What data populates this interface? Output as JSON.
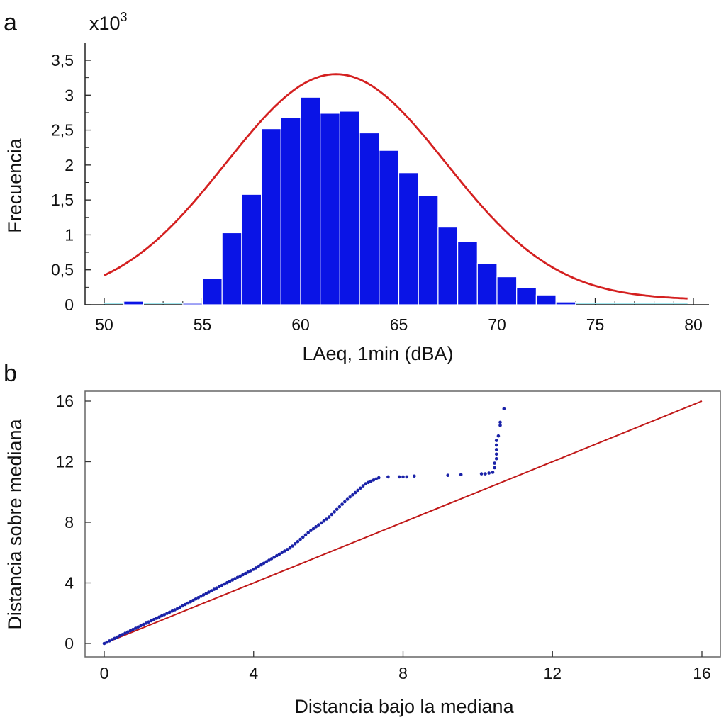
{
  "chart_data": [
    {
      "type": "bar",
      "panel_label": "a",
      "y_multiplier": "x10",
      "y_multiplier_exp": "3",
      "xlabel": "LAeq, 1min (dBA)",
      "ylabel": "Frecuencia",
      "xlim": [
        50,
        80
      ],
      "ylim": [
        0,
        3.5
      ],
      "x_ticks": [
        50,
        55,
        60,
        65,
        70,
        75,
        80
      ],
      "y_ticks": [
        "0",
        "0,5",
        "1",
        "1,5",
        "2",
        "2,5",
        "3",
        "3,5"
      ],
      "bin_width": 1,
      "bins": [
        {
          "x0": 51,
          "value": 0.05
        },
        {
          "x0": 54,
          "value": 0.02
        },
        {
          "x0": 55,
          "value": 0.38
        },
        {
          "x0": 56,
          "value": 1.03
        },
        {
          "x0": 57,
          "value": 1.58
        },
        {
          "x0": 58,
          "value": 2.52
        },
        {
          "x0": 59,
          "value": 2.68
        },
        {
          "x0": 60,
          "value": 2.97
        },
        {
          "x0": 61,
          "value": 2.74
        },
        {
          "x0": 62,
          "value": 2.77
        },
        {
          "x0": 63,
          "value": 2.46
        },
        {
          "x0": 64,
          "value": 2.21
        },
        {
          "x0": 65,
          "value": 1.89
        },
        {
          "x0": 66,
          "value": 1.56
        },
        {
          "x0": 67,
          "value": 1.11
        },
        {
          "x0": 68,
          "value": 0.9
        },
        {
          "x0": 69,
          "value": 0.59
        },
        {
          "x0": 70,
          "value": 0.4
        },
        {
          "x0": 71,
          "value": 0.24
        },
        {
          "x0": 72,
          "value": 0.14
        },
        {
          "x0": 73,
          "value": 0.04
        }
      ],
      "fit_curve": {
        "type": "normal",
        "mean": 61.8,
        "sd": 5.6,
        "peak": 3.3,
        "baseline": 0.07,
        "x_range": [
          50,
          79.7
        ],
        "color": "#d42020"
      },
      "bar_color": "#0a14e6",
      "baseline_color": "#9fe6ee"
    },
    {
      "type": "scatter",
      "panel_label": "b",
      "xlabel": "Distancia bajo la mediana",
      "ylabel": "Distancia sobre mediana",
      "xlim": [
        0,
        16
      ],
      "ylim": [
        0,
        16
      ],
      "x_ticks": [
        0,
        4,
        8,
        12,
        16
      ],
      "y_ticks": [
        0,
        4,
        8,
        12,
        16
      ],
      "reference_line": {
        "from": [
          0,
          0
        ],
        "to": [
          16,
          16
        ],
        "color": "#c01818"
      },
      "point_color": "#1a22a8",
      "curve_knots": [
        [
          0,
          0
        ],
        [
          0.5,
          0.6
        ],
        [
          1.0,
          1.2
        ],
        [
          2.0,
          2.35
        ],
        [
          3.0,
          3.65
        ],
        [
          4.0,
          4.9
        ],
        [
          5.0,
          6.35
        ],
        [
          5.5,
          7.4
        ],
        [
          6.0,
          8.3
        ],
        [
          6.5,
          9.5
        ],
        [
          7.0,
          10.55
        ],
        [
          7.4,
          11.0
        ]
      ],
      "curve_step": 0.07,
      "extra_points": [
        [
          7.6,
          11.0
        ],
        [
          7.9,
          11.0
        ],
        [
          8.0,
          11.0
        ],
        [
          8.1,
          11.0
        ],
        [
          8.3,
          11.05
        ],
        [
          9.2,
          11.1
        ],
        [
          9.55,
          11.15
        ],
        [
          10.1,
          11.2
        ],
        [
          10.2,
          11.2
        ],
        [
          10.3,
          11.25
        ],
        [
          10.4,
          11.3
        ],
        [
          10.45,
          11.6
        ],
        [
          10.45,
          11.9
        ],
        [
          10.5,
          12.2
        ],
        [
          10.5,
          12.5
        ],
        [
          10.5,
          12.8
        ],
        [
          10.5,
          13.1
        ],
        [
          10.5,
          13.4
        ],
        [
          10.55,
          13.7
        ],
        [
          10.6,
          14.4
        ],
        [
          10.6,
          14.6
        ],
        [
          10.7,
          15.5
        ]
      ]
    }
  ]
}
